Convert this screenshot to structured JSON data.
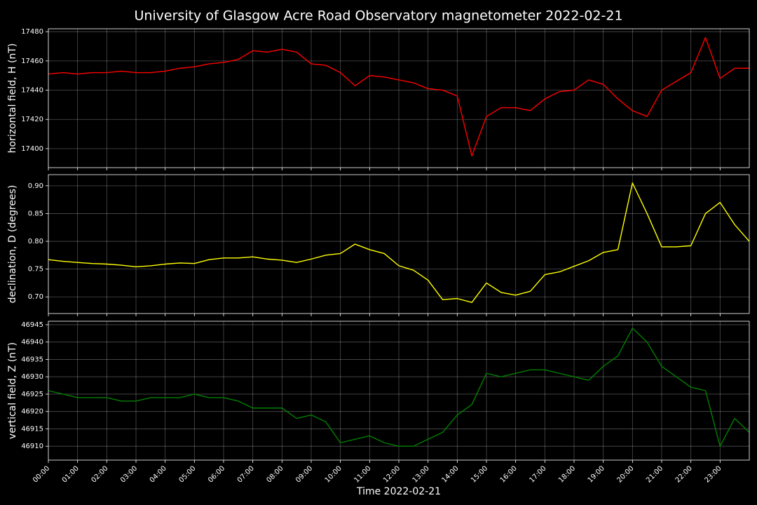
{
  "title": "University of Glasgow Acre Road Observatory magnetometer 2022-02-21",
  "chart_data": [
    {
      "type": "line",
      "ylabel": "horizontal field, H (nT)",
      "color": "#ff0000",
      "grid": true,
      "x": [
        0,
        0.5,
        1,
        1.5,
        2,
        2.5,
        3,
        3.5,
        4,
        4.5,
        5,
        5.5,
        6,
        6.5,
        7,
        7.5,
        8,
        8.5,
        9,
        9.5,
        10,
        10.5,
        11,
        11.5,
        12,
        12.5,
        13,
        13.5,
        14,
        14.5,
        15,
        15.5,
        16,
        16.5,
        17,
        17.5,
        18,
        18.5,
        19,
        19.5,
        20,
        20.5,
        21,
        21.5,
        22,
        22.5,
        23,
        23.5,
        24
      ],
      "values": [
        17451,
        17452,
        17451,
        17452,
        17452,
        17453,
        17452,
        17452,
        17453,
        17455,
        17456,
        17458,
        17459,
        17461,
        17467,
        17466,
        17468,
        17466,
        17458,
        17457,
        17452,
        17443,
        17450,
        17449,
        17447,
        17445,
        17441,
        17440,
        17436,
        17395,
        17422,
        17428,
        17428,
        17426,
        17434,
        17439,
        17440,
        17447,
        17444,
        17434,
        17426,
        17422,
        17440,
        17446,
        17452,
        17476,
        17448,
        17455,
        17455
      ],
      "xlim": [
        0,
        24
      ],
      "ylim": [
        17387,
        17482
      ],
      "yticks": [
        17400,
        17420,
        17440,
        17460,
        17480
      ]
    },
    {
      "type": "line",
      "ylabel": "declination, D (degrees)",
      "color": "#ffff00",
      "grid": true,
      "x": [
        0,
        0.5,
        1,
        1.5,
        2,
        2.5,
        3,
        3.5,
        4,
        4.5,
        5,
        5.5,
        6,
        6.5,
        7,
        7.5,
        8,
        8.5,
        9,
        9.5,
        10,
        10.5,
        11,
        11.5,
        12,
        12.5,
        13,
        13.5,
        14,
        14.5,
        15,
        15.5,
        16,
        16.5,
        17,
        17.5,
        18,
        18.5,
        19,
        19.5,
        20,
        20.5,
        21,
        21.5,
        22,
        22.5,
        23,
        23.5,
        24
      ],
      "values": [
        0.767,
        0.764,
        0.762,
        0.76,
        0.759,
        0.757,
        0.754,
        0.756,
        0.759,
        0.761,
        0.76,
        0.767,
        0.77,
        0.77,
        0.772,
        0.768,
        0.766,
        0.762,
        0.768,
        0.775,
        0.778,
        0.795,
        0.785,
        0.778,
        0.756,
        0.748,
        0.73,
        0.695,
        0.697,
        0.69,
        0.725,
        0.708,
        0.703,
        0.71,
        0.74,
        0.745,
        0.755,
        0.765,
        0.78,
        0.785,
        0.905,
        0.85,
        0.79,
        0.79,
        0.792,
        0.85,
        0.87,
        0.83,
        0.8
      ],
      "xlim": [
        0,
        24
      ],
      "ylim": [
        0.67,
        0.92
      ],
      "yticks": [
        {
          "value": 0.7,
          "label": "0.70"
        },
        0.75,
        {
          "value": 0.8,
          "label": "0.80"
        },
        0.85,
        {
          "value": 0.9,
          "label": "0.90"
        }
      ]
    },
    {
      "type": "line",
      "ylabel": "vertical field, Z (nT)",
      "xlabel": "Time 2022-02-21",
      "color": "#008000",
      "grid": true,
      "x": [
        0,
        0.5,
        1,
        1.5,
        2,
        2.5,
        3,
        3.5,
        4,
        4.5,
        5,
        5.5,
        6,
        6.5,
        7,
        7.5,
        8,
        8.5,
        9,
        9.5,
        10,
        10.5,
        11,
        11.5,
        12,
        12.5,
        13,
        13.5,
        14,
        14.5,
        15,
        15.5,
        16,
        16.5,
        17,
        17.5,
        18,
        18.5,
        19,
        19.5,
        20,
        20.5,
        21,
        21.5,
        22,
        22.5,
        23,
        23.5,
        24
      ],
      "values": [
        46926,
        46925,
        46924,
        46924,
        46924,
        46923,
        46923,
        46924,
        46924,
        46924,
        46925,
        46924,
        46924,
        46923,
        46921,
        46921,
        46921,
        46918,
        46919,
        46917,
        46911,
        46912,
        46913,
        46911,
        46910,
        46910,
        46912,
        46914,
        46919,
        46922,
        46931,
        46930,
        46931,
        46932,
        46932,
        46931,
        46930,
        46929,
        46933,
        46936,
        46944,
        46940,
        46933,
        46930,
        46927,
        46926,
        46910,
        46918,
        46914
      ],
      "xlim": [
        0,
        24
      ],
      "ylim": [
        46906,
        46946
      ],
      "yticks": [
        46910,
        46915,
        46920,
        46925,
        46930,
        46935,
        46940,
        46945
      ],
      "xticks": [
        {
          "value": 0,
          "label": "00:00"
        },
        {
          "value": 1,
          "label": "01:00"
        },
        {
          "value": 2,
          "label": "02:00"
        },
        {
          "value": 3,
          "label": "03:00"
        },
        {
          "value": 4,
          "label": "04:00"
        },
        {
          "value": 5,
          "label": "05:00"
        },
        {
          "value": 6,
          "label": "06:00"
        },
        {
          "value": 7,
          "label": "07:00"
        },
        {
          "value": 8,
          "label": "08:00"
        },
        {
          "value": 9,
          "label": "09:00"
        },
        {
          "value": 10,
          "label": "10:00"
        },
        {
          "value": 11,
          "label": "11:00"
        },
        {
          "value": 12,
          "label": "12:00"
        },
        {
          "value": 13,
          "label": "13:00"
        },
        {
          "value": 14,
          "label": "14:00"
        },
        {
          "value": 15,
          "label": "15:00"
        },
        {
          "value": 16,
          "label": "16:00"
        },
        {
          "value": 17,
          "label": "17:00"
        },
        {
          "value": 18,
          "label": "18:00"
        },
        {
          "value": 19,
          "label": "19:00"
        },
        {
          "value": 20,
          "label": "20:00"
        },
        {
          "value": 21,
          "label": "21:00"
        },
        {
          "value": 22,
          "label": "22:00"
        },
        {
          "value": 23,
          "label": "23:00"
        }
      ]
    }
  ]
}
